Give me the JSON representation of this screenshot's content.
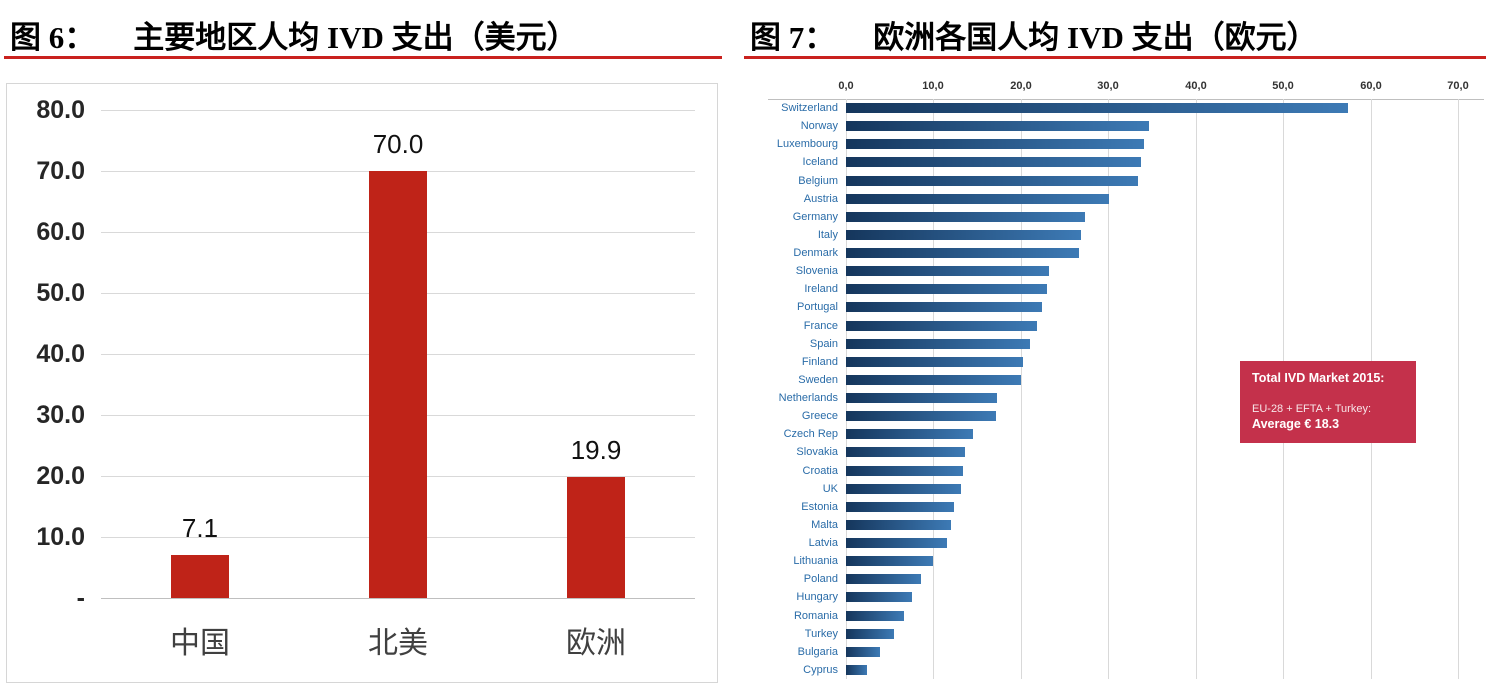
{
  "theme": {
    "rule_red": "#c9211e"
  },
  "figures": [
    {
      "fig_label": "图 6：",
      "title": "主要地区人均 IVD 支出（美元）"
    },
    {
      "fig_label": "图 7：",
      "title": "欧洲各国人均 IVD 支出（欧元）"
    }
  ],
  "chart_data": [
    {
      "type": "bar",
      "title": "主要地区人均 IVD 支出（美元）",
      "categories": [
        "中国",
        "北美",
        "欧洲"
      ],
      "values": [
        7.1,
        70.0,
        19.9
      ],
      "value_labels": [
        "7.1",
        "70.0",
        "19.9"
      ],
      "ylim": [
        0,
        80
      ],
      "ytick_labels": [
        "80.0",
        "70.0",
        "60.0",
        "50.0",
        "40.0",
        "30.0",
        "20.0",
        "10.0",
        "-"
      ],
      "grid": true,
      "legend": "none",
      "bar_color": "#bf2318"
    },
    {
      "type": "bar-horizontal",
      "title": "欧洲各国人均 IVD 支出（欧元）",
      "categories": [
        "Switzerland",
        "Norway",
        "Luxembourg",
        "Iceland",
        "Belgium",
        "Austria",
        "Germany",
        "Italy",
        "Denmark",
        "Slovenia",
        "Ireland",
        "Portugal",
        "France",
        "Spain",
        "Finland",
        "Sweden",
        "Netherlands",
        "Greece",
        "Czech Rep",
        "Slovakia",
        "Croatia",
        "UK",
        "Estonia",
        "Malta",
        "Latvia",
        "Lithuania",
        "Poland",
        "Hungary",
        "Romania",
        "Turkey",
        "Bulgaria",
        "Cyprus"
      ],
      "values": [
        57.4,
        34.6,
        34.1,
        33.7,
        33.4,
        30.1,
        27.3,
        26.9,
        26.6,
        23.2,
        23.0,
        22.4,
        21.9,
        21.0,
        20.3,
        20.0,
        17.3,
        17.2,
        14.5,
        13.6,
        13.4,
        13.2,
        12.4,
        12.0,
        11.5,
        10.0,
        8.6,
        7.6,
        6.6,
        5.5,
        3.9,
        2.4
      ],
      "xlim": [
        0,
        70
      ],
      "xtick_labels": [
        "0,0",
        "10,0",
        "20,0",
        "30,0",
        "40,0",
        "50,0",
        "60,0",
        "70,0"
      ],
      "grid": true,
      "legend": "none",
      "axis_position": "top",
      "bar_gradient": [
        "#15365c",
        "#3d7ab5"
      ],
      "label_color": "#2a6ca8",
      "annotation": {
        "line1": "Total IVD Market 2015:",
        "line2": "EU-28 + EFTA + Turkey:",
        "line3": "Average € 18.3",
        "bg": "#c4314b"
      }
    }
  ]
}
